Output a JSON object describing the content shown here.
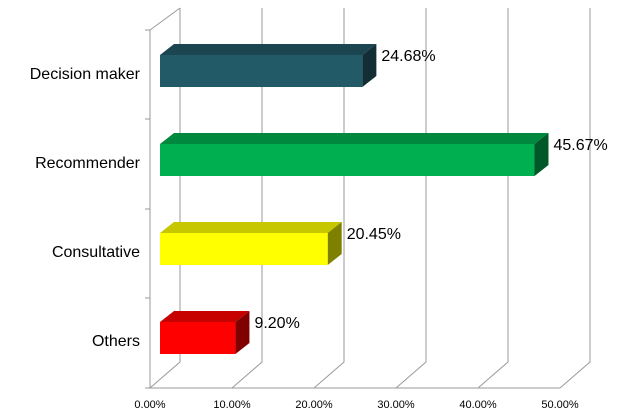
{
  "chart_data": {
    "type": "bar3d_horizontal",
    "categories": [
      "Decision maker",
      "Recommender",
      "Consultative",
      "Others"
    ],
    "values": [
      24.68,
      45.67,
      20.45,
      9.2
    ],
    "value_labels": [
      "24.68%",
      "45.67%",
      "20.45%",
      "9.20%"
    ],
    "colors": [
      "#235a68",
      "#00b050",
      "#ffff00",
      "#ff0000"
    ],
    "xlim": [
      0,
      50
    ],
    "xticks": [
      {
        "value": 0,
        "label": "0.00%"
      },
      {
        "value": 10,
        "label": "10.00%"
      },
      {
        "value": 20,
        "label": "20.00%"
      },
      {
        "value": 30,
        "label": "30.00%"
      },
      {
        "value": 40,
        "label": "40.00%"
      },
      {
        "value": 50,
        "label": "50.00%"
      }
    ],
    "grid": true
  }
}
